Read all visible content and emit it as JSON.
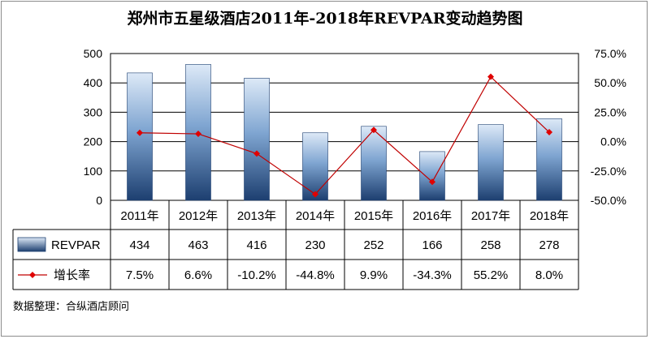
{
  "chart_data": {
    "type": "bar",
    "title": "郑州市五星级酒店2011年-2018年REVPAR变动趋势图",
    "categories": [
      "2011年",
      "2012年",
      "2013年",
      "2014年",
      "2015年",
      "2016年",
      "2017年",
      "2018年"
    ],
    "series": [
      {
        "name": "REVPAR",
        "type": "bar",
        "axis": "left",
        "values": [
          434,
          463,
          416,
          230,
          252,
          166,
          258,
          278
        ],
        "labels": [
          "434",
          "463",
          "416",
          "230",
          "252",
          "166",
          "258",
          "278"
        ]
      },
      {
        "name": "增长率",
        "type": "line",
        "axis": "right",
        "values": [
          7.5,
          6.6,
          -10.2,
          -44.8,
          9.9,
          -34.3,
          55.2,
          8.0
        ],
        "labels": [
          "7.5%",
          "6.6%",
          "-10.2%",
          "-44.8%",
          "9.9%",
          "-34.3%",
          "55.2%",
          "8.0%"
        ]
      }
    ],
    "y_left": {
      "range": [
        0,
        500
      ],
      "ticks": [
        0,
        100,
        200,
        300,
        400,
        500
      ],
      "tick_labels": [
        "0",
        "100",
        "200",
        "300",
        "400",
        "500"
      ]
    },
    "y_right": {
      "range": [
        -50,
        75
      ],
      "ticks": [
        -50,
        -25,
        0,
        25,
        50,
        75
      ],
      "tick_labels": [
        "-50.0%",
        "-25.0%",
        "0.0%",
        "25.0%",
        "50.0%",
        "75.0%"
      ]
    },
    "grid": true,
    "legend": "data-table",
    "colors": {
      "bar_top": "#dde9f7",
      "bar_mid": "#7fa5d1",
      "bar_bottom": "#1d3f70",
      "line": "#c00000",
      "marker": "#e00000",
      "grid": "#000000"
    },
    "source_note": "数据整理：合纵酒店顾问"
  }
}
